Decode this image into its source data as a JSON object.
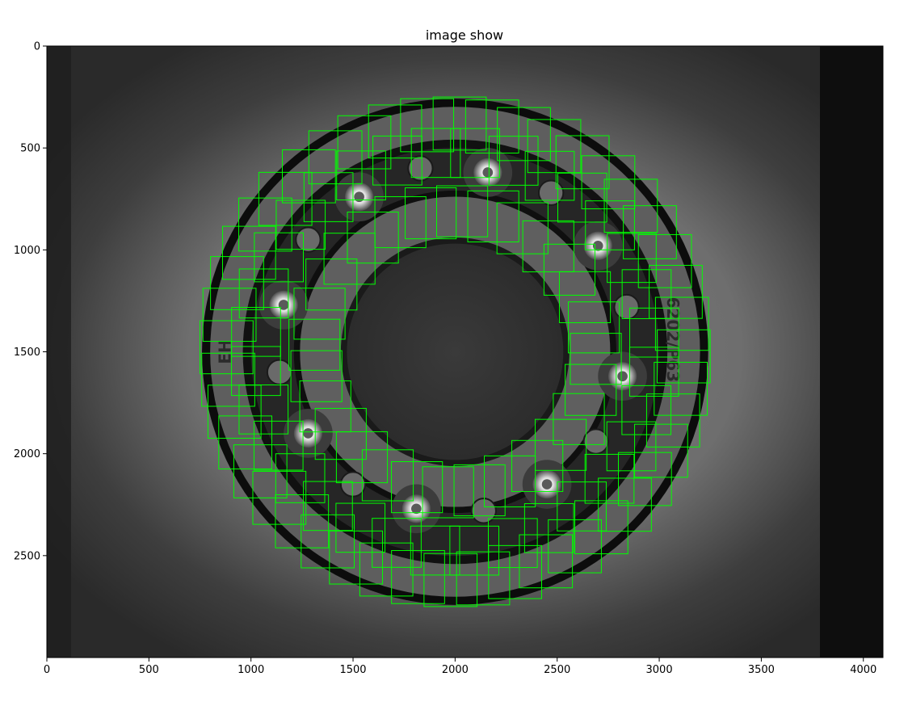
{
  "figure": {
    "title": "image show"
  },
  "axes": {
    "x_ticks": [
      0,
      500,
      1000,
      1500,
      2000,
      2500,
      3000,
      3500,
      4000
    ],
    "y_ticks": [
      0,
      500,
      1000,
      1500,
      2000,
      2500
    ],
    "x_range": [
      0,
      4096
    ],
    "y_range": [
      0,
      3000
    ],
    "y_inverted": true
  },
  "image": {
    "description_text_visible": [
      "EH",
      "6202/P63"
    ],
    "bearing_center": [
      2000,
      1500
    ],
    "ball_centers": [
      [
        2160,
        620
      ],
      [
        1530,
        740
      ],
      [
        2700,
        980
      ],
      [
        1160,
        1270
      ],
      [
        2820,
        1620
      ],
      [
        1280,
        1900
      ],
      [
        2450,
        2150
      ],
      [
        1810,
        2270
      ]
    ],
    "cage_dot_centers": [
      [
        1830,
        600
      ],
      [
        2470,
        720
      ],
      [
        1280,
        950
      ],
      [
        2840,
        1280
      ],
      [
        1140,
        1600
      ],
      [
        2690,
        1940
      ],
      [
        1500,
        2150
      ],
      [
        2140,
        2280
      ]
    ],
    "box_color": "#00ff00"
  }
}
